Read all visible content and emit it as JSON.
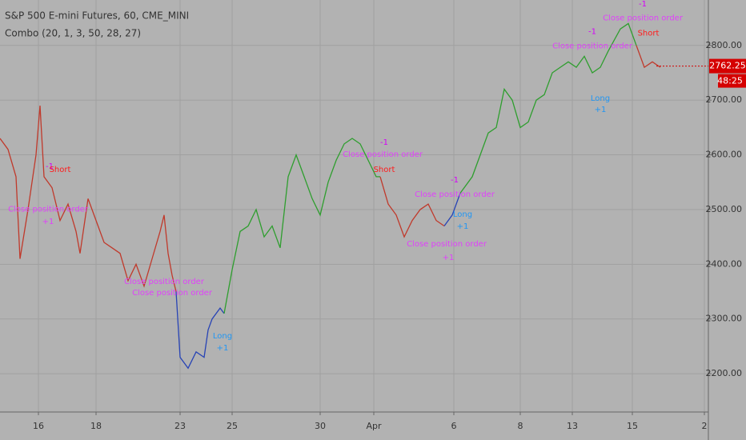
{
  "chart_data": {
    "type": "line",
    "title": "S&P 500 E-mini Futures, 60, CME_MINI",
    "subtitle": "Combo (20, 1, 3, 50, 28, 27)",
    "xlim": [
      0,
      442.5
    ],
    "ylim": [
      2130,
      2883
    ],
    "grid": true,
    "xticks": [
      {
        "value": 24,
        "label": "16"
      },
      {
        "value": 60,
        "label": "18"
      },
      {
        "value": 112.5,
        "label": "23"
      },
      {
        "value": 145,
        "label": "25"
      },
      {
        "value": 200,
        "label": "30"
      },
      {
        "value": 233.5,
        "label": "Apr"
      },
      {
        "value": 283.5,
        "label": "6"
      },
      {
        "value": 325,
        "label": "8"
      },
      {
        "value": 357.5,
        "label": "13"
      },
      {
        "value": 395,
        "label": "15"
      },
      {
        "value": 440,
        "label": "2"
      }
    ],
    "yticks": [
      {
        "value": 2200,
        "label": "2200.00"
      },
      {
        "value": 2300,
        "label": "2300.00"
      },
      {
        "value": 2400,
        "label": "2400.00"
      },
      {
        "value": 2500,
        "label": "2500.00"
      },
      {
        "value": 2600,
        "label": "2600.00"
      },
      {
        "value": 2700,
        "label": "2700.00"
      },
      {
        "value": 2800,
        "label": "2800.00"
      }
    ],
    "series": [
      {
        "color": "#c0392b",
        "x": [
          0,
          5,
          10,
          12.5,
          17.5,
          22.5,
          25,
          27.5,
          32.5,
          37.5,
          42.5,
          47.5,
          50,
          55,
          60,
          65,
          70,
          75,
          80,
          85,
          90,
          95,
          100,
          102.5,
          105,
          107.5,
          110
        ],
        "values": [
          2630,
          2610,
          2560,
          2410,
          2500,
          2600,
          2690,
          2560,
          2540,
          2480,
          2510,
          2460,
          2420,
          2520,
          2480,
          2440,
          2430,
          2420,
          2370,
          2400,
          2360,
          2410,
          2460,
          2490,
          2420,
          2380,
          2350
        ]
      },
      {
        "color": "#2743b5",
        "x": [
          110,
          112.5,
          117.5,
          122.5,
          127.5,
          130,
          132.5,
          137.5,
          140
        ],
        "values": [
          2350,
          2230,
          2210,
          2240,
          2230,
          2280,
          2300,
          2320,
          2310
        ]
      },
      {
        "color": "#2e9e2e",
        "x": [
          140,
          145,
          150,
          155,
          160,
          165,
          170,
          175,
          180,
          185,
          190,
          195,
          200,
          205,
          210,
          215,
          220,
          225,
          230,
          235,
          237.5
        ],
        "values": [
          2310,
          2390,
          2460,
          2470,
          2500,
          2450,
          2470,
          2430,
          2560,
          2600,
          2560,
          2520,
          2490,
          2550,
          2590,
          2620,
          2630,
          2620,
          2590,
          2560,
          2560
        ]
      },
      {
        "color": "#c0392b",
        "x": [
          237.5,
          242.5,
          247.5,
          252.5,
          257.5,
          262.5,
          267.5,
          272.5,
          277.5
        ],
        "values": [
          2560,
          2510,
          2490,
          2450,
          2480,
          2500,
          2510,
          2480,
          2470
        ]
      },
      {
        "color": "#2743b5",
        "x": [
          277.5,
          282.5,
          287.5
        ],
        "values": [
          2470,
          2490,
          2530
        ]
      },
      {
        "color": "#2e9e2e",
        "x": [
          287.5,
          295,
          300,
          305,
          310,
          315,
          320,
          325,
          330,
          335,
          340,
          345,
          350,
          355,
          360,
          365,
          370,
          375,
          380,
          387.5,
          392.5,
          397.5
        ],
        "values": [
          2530,
          2560,
          2600,
          2640,
          2650,
          2720,
          2700,
          2650,
          2660,
          2700,
          2710,
          2750,
          2760,
          2770,
          2760,
          2780,
          2750,
          2760,
          2790,
          2830,
          2840,
          2800
        ]
      },
      {
        "color": "#c0392b",
        "x": [
          397.5,
          402.5,
          407.5,
          412.5
        ],
        "values": [
          2800,
          2760,
          2770,
          2760
        ]
      }
    ],
    "annotations": [
      {
        "text": "-1",
        "x": 31,
        "y": 2579,
        "color": "#d500f9"
      },
      {
        "text": "Short",
        "x": 37.5,
        "y": 2573,
        "color": "#ff1a1a"
      },
      {
        "text": "Close position order",
        "x": 30,
        "y": 2501,
        "color": "#e040fb"
      },
      {
        "text": "+1",
        "x": 30,
        "y": 2478,
        "color": "#e040fb"
      },
      {
        "text": "Close position order",
        "x": 102.5,
        "y": 2368,
        "color": "#e040fb"
      },
      {
        "text": "Close position order",
        "x": 107.5,
        "y": 2348,
        "color": "#e040fb"
      },
      {
        "text": "Long",
        "x": 139,
        "y": 2269,
        "color": "#2196f3"
      },
      {
        "text": "+1",
        "x": 139,
        "y": 2247,
        "color": "#2196f3"
      },
      {
        "text": "-1",
        "x": 240,
        "y": 2623,
        "color": "#d500f9"
      },
      {
        "text": "Close position order",
        "x": 239,
        "y": 2601,
        "color": "#e040fb"
      },
      {
        "text": "Short",
        "x": 240,
        "y": 2573,
        "color": "#ff1a1a"
      },
      {
        "text": "-1",
        "x": 284,
        "y": 2554,
        "color": "#d500f9"
      },
      {
        "text": "Close position order",
        "x": 284,
        "y": 2528,
        "color": "#e040fb"
      },
      {
        "text": "Long",
        "x": 289,
        "y": 2491,
        "color": "#2196f3"
      },
      {
        "text": "+1",
        "x": 289,
        "y": 2469,
        "color": "#2196f3"
      },
      {
        "text": "Close position order",
        "x": 279,
        "y": 2437,
        "color": "#e040fb"
      },
      {
        "text": "+1",
        "x": 280,
        "y": 2412,
        "color": "#e040fb"
      },
      {
        "text": "-1",
        "x": 370,
        "y": 2825,
        "color": "#d500f9"
      },
      {
        "text": "Close position order",
        "x": 370,
        "y": 2799,
        "color": "#e040fb"
      },
      {
        "text": "Long",
        "x": 375,
        "y": 2703,
        "color": "#2196f3"
      },
      {
        "text": "+1",
        "x": 375,
        "y": 2683,
        "color": "#2196f3"
      },
      {
        "text": "-1",
        "x": 401.5,
        "y": 2876,
        "color": "#d500f9"
      },
      {
        "text": "Close position order",
        "x": 401.5,
        "y": 2850,
        "color": "#e040fb"
      },
      {
        "text": "Short",
        "x": 405,
        "y": 2822,
        "color": "#ff1a1a"
      }
    ],
    "last_price": {
      "value": 2762.25,
      "countdown": "48:25",
      "color": "#d50000"
    }
  }
}
